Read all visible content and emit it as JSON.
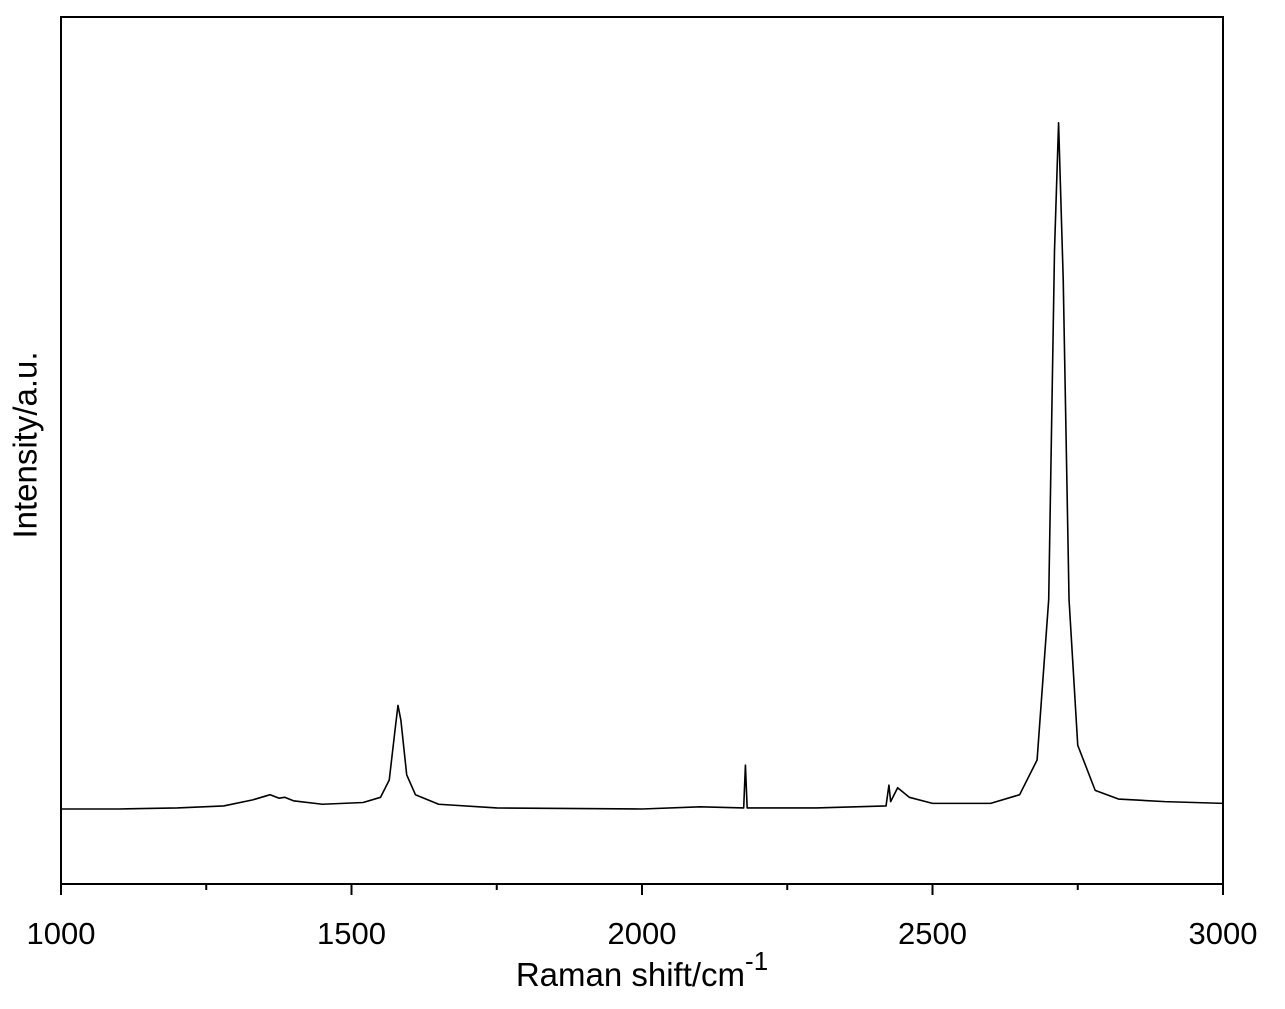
{
  "chart_data": {
    "type": "line",
    "xlabel": "Raman shift/cm",
    "xlabel_sup": "-1",
    "ylabel": "Intensity/a.u.",
    "xlim": [
      1000,
      3000
    ],
    "ylim": [
      0,
      100
    ],
    "xticks": [
      1000,
      1500,
      2000,
      2500,
      3000
    ],
    "xminorticks": [
      1250,
      1750,
      2250,
      2750
    ],
    "grid": false,
    "x": [
      1000,
      1100,
      1200,
      1280,
      1330,
      1360,
      1375,
      1385,
      1400,
      1450,
      1520,
      1550,
      1565,
      1575,
      1580,
      1585,
      1595,
      1610,
      1650,
      1750,
      2000,
      2100,
      2175,
      2178,
      2181,
      2300,
      2420,
      2425,
      2428,
      2440,
      2460,
      2500,
      2600,
      2650,
      2680,
      2700,
      2710,
      2717,
      2725,
      2735,
      2750,
      2780,
      2820,
      2900,
      3000
    ],
    "series": [
      {
        "color": "#000000",
        "values": [
          8.65,
          8.65,
          8.77,
          9.0,
          9.7,
          10.3,
          9.9,
          10.0,
          9.6,
          9.2,
          9.4,
          10.0,
          12.0,
          17.8,
          20.6,
          18.9,
          12.6,
          10.3,
          9.2,
          8.77,
          8.65,
          8.9,
          8.77,
          13.7,
          8.77,
          8.77,
          9.0,
          11.4,
          9.5,
          11.1,
          10.0,
          9.3,
          9.3,
          10.3,
          14.3,
          32.8,
          73.1,
          87.8,
          69.7,
          32.8,
          16.0,
          10.8,
          9.8,
          9.5,
          9.3
        ]
      }
    ]
  }
}
